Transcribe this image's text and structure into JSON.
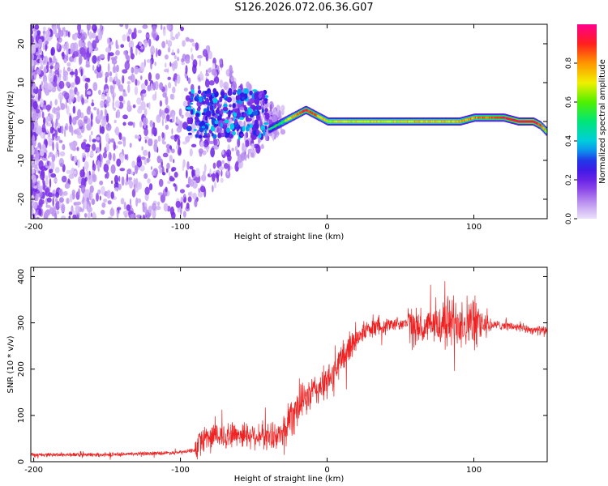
{
  "title": "S126.2026.072.06.36.G07",
  "chart_data": [
    {
      "type": "heatmap",
      "name": "spectrogram",
      "xlabel": "Height of straight line (km)",
      "ylabel": "Frequency (Hz)",
      "xlim": [
        -202,
        150
      ],
      "ylim": [
        -25,
        25
      ],
      "xticks": [
        -200,
        -100,
        0,
        100
      ],
      "xtick_labels": [
        "-200",
        "-100",
        "0",
        "100"
      ],
      "yticks": [
        -20,
        -10,
        0,
        10,
        20
      ],
      "ytick_labels": [
        "-20",
        "-10",
        "0",
        "10",
        "20"
      ],
      "colorbar": {
        "label": "Normalized spectral amplitude",
        "range": [
          0,
          1
        ],
        "ticks": [
          0,
          0.2,
          0.4,
          0.6,
          0.8
        ],
        "tick_labels": [
          "0.0",
          "0.2",
          "0.4",
          "0.6",
          "0.8"
        ]
      },
      "ridge_x": [
        -40,
        -35,
        -30,
        -25,
        -20,
        -15,
        -10,
        -5,
        0,
        10,
        20,
        30,
        40,
        50,
        60,
        70,
        80,
        90,
        100,
        110,
        120,
        130,
        140,
        145,
        150
      ],
      "ridge_freq": [
        -2,
        -1,
        0,
        1,
        2,
        3,
        2,
        1,
        0,
        0,
        0,
        0,
        0,
        0,
        0,
        0,
        0,
        0,
        1,
        1,
        1,
        0,
        0,
        -1,
        -3
      ],
      "ridge_amplitude": [
        0.45,
        0.5,
        0.6,
        0.75,
        0.85,
        0.9,
        0.85,
        0.75,
        0.7,
        0.7,
        0.72,
        0.72,
        0.72,
        0.72,
        0.75,
        0.75,
        0.75,
        0.78,
        0.8,
        0.85,
        0.9,
        0.95,
        0.95,
        0.9,
        0.6
      ],
      "noise_region_x": [
        -202,
        -40
      ],
      "noise_amplitude": "0.0-0.15"
    },
    {
      "type": "line",
      "name": "snr",
      "xlabel": "Height of straight line (km)",
      "ylabel": "SNR (10 * v/v)",
      "xlim": [
        -202,
        150
      ],
      "ylim": [
        0,
        420
      ],
      "xticks": [
        -200,
        -100,
        0,
        100
      ],
      "xtick_labels": [
        "-200",
        "-100",
        "0",
        "100"
      ],
      "yticks": [
        0,
        100,
        200,
        300,
        400
      ],
      "ytick_labels": [
        "0",
        "100",
        "200",
        "300",
        "400"
      ],
      "color": "#ee2222",
      "x": [
        -202,
        -150,
        -100,
        -90,
        -85,
        -80,
        -60,
        -40,
        -30,
        -25,
        -20,
        -10,
        0,
        10,
        20,
        30,
        40,
        50,
        60,
        65,
        70,
        80,
        90,
        100,
        110,
        120,
        130,
        140,
        150
      ],
      "y": [
        15,
        15,
        20,
        25,
        50,
        55,
        60,
        55,
        60,
        100,
        120,
        150,
        170,
        220,
        270,
        290,
        295,
        300,
        295,
        285,
        290,
        300,
        305,
        300,
        295,
        295,
        290,
        285,
        282
      ]
    }
  ]
}
